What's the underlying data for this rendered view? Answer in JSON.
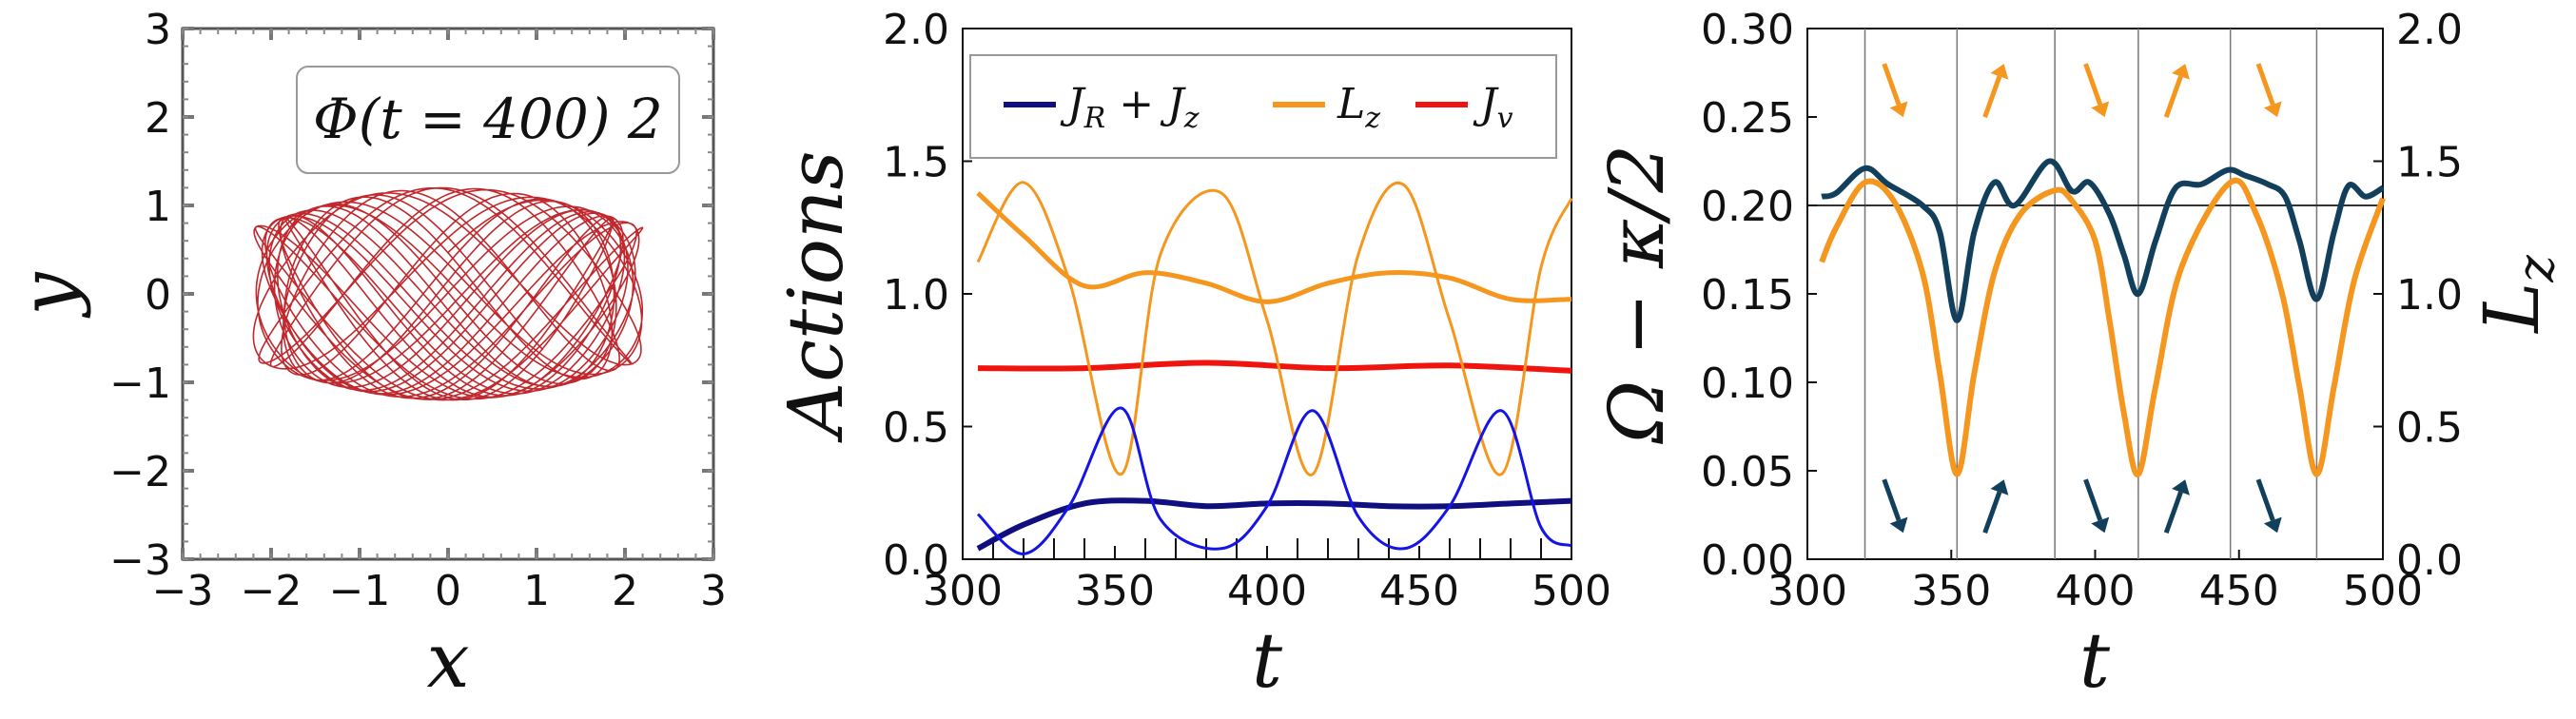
{
  "chart_data": [
    {
      "type": "line",
      "panel": "orbit",
      "xlabel": "x",
      "ylabel": "y",
      "xlim": [
        -3,
        3
      ],
      "ylim": [
        -3,
        3
      ],
      "xticks": [
        "−3",
        "−2",
        "−1",
        "0",
        "1",
        "2",
        "3"
      ],
      "yticks": [
        "−3",
        "−2",
        "−1",
        "0",
        "1",
        "2",
        "3"
      ],
      "annotation": "Φ(t = 400) 2",
      "orbit": {
        "x_amplitude": 2.2,
        "y_amplitude": 1.2,
        "color": "#c0282d"
      }
    },
    {
      "type": "line",
      "panel": "actions",
      "xlabel": "t",
      "ylabel": "Actions",
      "xlim": [
        300,
        500
      ],
      "ylim": [
        0,
        2
      ],
      "xticks": [
        "300",
        "350",
        "400",
        "450",
        "500"
      ],
      "yticks": [
        "0.0",
        "0.5",
        "1.0",
        "1.5",
        "2.0"
      ],
      "legend_position": "top",
      "series": [
        {
          "name": "J_R + J_z",
          "color": "#0f0f80",
          "x": [
            305,
            320,
            340,
            360,
            380,
            400,
            420,
            440,
            460,
            480,
            500
          ],
          "values": [
            0.04,
            0.13,
            0.21,
            0.22,
            0.2,
            0.21,
            0.21,
            0.2,
            0.2,
            0.21,
            0.22
          ]
        },
        {
          "name": "L_z",
          "color": "#f5961e",
          "x": [
            305,
            320,
            340,
            360,
            380,
            400,
            420,
            440,
            460,
            480,
            500
          ],
          "values": [
            1.38,
            1.22,
            1.03,
            1.08,
            1.04,
            0.97,
            1.04,
            1.08,
            1.06,
            0.98,
            0.98
          ]
        },
        {
          "name": "J_v",
          "color": "#f0140f",
          "x": [
            305,
            340,
            380,
            420,
            460,
            500
          ],
          "values": [
            0.72,
            0.72,
            0.74,
            0.72,
            0.73,
            0.71
          ]
        },
        {
          "color": "#f5961e",
          "x": [
            305,
            320,
            335,
            352,
            365,
            385,
            400,
            415,
            430,
            445,
            460,
            477,
            490,
            500
          ],
          "values": [
            1.12,
            1.42,
            1.05,
            0.32,
            1.15,
            1.38,
            0.9,
            0.32,
            1.15,
            1.41,
            0.9,
            0.32,
            1.1,
            1.36
          ]
        },
        {
          "color": "#1414e6",
          "x": [
            305,
            320,
            335,
            352,
            365,
            385,
            400,
            415,
            430,
            445,
            460,
            477,
            490,
            500
          ],
          "values": [
            0.17,
            0.02,
            0.2,
            0.57,
            0.15,
            0.04,
            0.2,
            0.56,
            0.16,
            0.04,
            0.2,
            0.56,
            0.12,
            0.05
          ]
        }
      ]
    },
    {
      "type": "line",
      "panel": "frequency",
      "xlabel": "t",
      "ylabel": "Ω − κ/2",
      "ylabel_right": "L_z",
      "xlim": [
        300,
        500
      ],
      "ylim": [
        0,
        0.3
      ],
      "ylim_right": [
        0,
        2
      ],
      "xticks": [
        "300",
        "350",
        "400",
        "450",
        "500"
      ],
      "yticks": [
        "0.00",
        "0.05",
        "0.10",
        "0.15",
        "0.20",
        "0.25",
        "0.30"
      ],
      "yticks_right": [
        "0.0",
        "0.5",
        "1.0",
        "1.5",
        "2.0"
      ],
      "reference_line": 0.2,
      "vertical_lines": [
        320,
        352,
        386,
        415,
        447,
        477
      ],
      "series": [
        {
          "axis": "left",
          "color": "#123f5c",
          "x": [
            305,
            310,
            320,
            328,
            340,
            346,
            352,
            358,
            365,
            372,
            384,
            392,
            398,
            405,
            410,
            415,
            421,
            428,
            437,
            446,
            452,
            460,
            466,
            471,
            477,
            483,
            488,
            494,
            500
          ],
          "values": [
            0.205,
            0.207,
            0.221,
            0.212,
            0.2,
            0.185,
            0.135,
            0.185,
            0.213,
            0.2,
            0.225,
            0.208,
            0.213,
            0.195,
            0.172,
            0.15,
            0.18,
            0.21,
            0.212,
            0.22,
            0.217,
            0.212,
            0.205,
            0.18,
            0.147,
            0.185,
            0.211,
            0.205,
            0.21
          ]
        },
        {
          "axis": "right",
          "color": "#f5961e",
          "x": [
            305,
            310,
            320,
            330,
            340,
            346,
            352,
            358,
            365,
            374,
            386,
            392,
            400,
            405,
            410,
            415,
            421,
            430,
            447,
            456,
            465,
            471,
            477,
            483,
            490,
            500
          ],
          "values": [
            1.12,
            1.25,
            1.42,
            1.35,
            1.08,
            0.7,
            0.32,
            0.7,
            1.08,
            1.3,
            1.39,
            1.35,
            1.2,
            0.9,
            0.55,
            0.32,
            0.65,
            1.1,
            1.42,
            1.3,
            1.0,
            0.65,
            0.32,
            0.65,
            1.05,
            1.36
          ]
        }
      ],
      "arrows": [
        {
          "t": 330,
          "v": 0.265,
          "dir": "down",
          "color": "#f5961e"
        },
        {
          "t": 365,
          "v": 0.265,
          "dir": "up",
          "color": "#f5961e"
        },
        {
          "t": 400,
          "v": 0.265,
          "dir": "down",
          "color": "#f5961e"
        },
        {
          "t": 428,
          "v": 0.265,
          "dir": "up",
          "color": "#f5961e"
        },
        {
          "t": 460,
          "v": 0.265,
          "dir": "down",
          "color": "#f5961e"
        },
        {
          "t": 330,
          "v": 0.03,
          "dir": "down",
          "color": "#123f5c"
        },
        {
          "t": 365,
          "v": 0.03,
          "dir": "up",
          "color": "#123f5c"
        },
        {
          "t": 400,
          "v": 0.03,
          "dir": "down",
          "color": "#123f5c"
        },
        {
          "t": 428,
          "v": 0.03,
          "dir": "up",
          "color": "#123f5c"
        },
        {
          "t": 460,
          "v": 0.03,
          "dir": "down",
          "color": "#123f5c"
        }
      ]
    }
  ]
}
